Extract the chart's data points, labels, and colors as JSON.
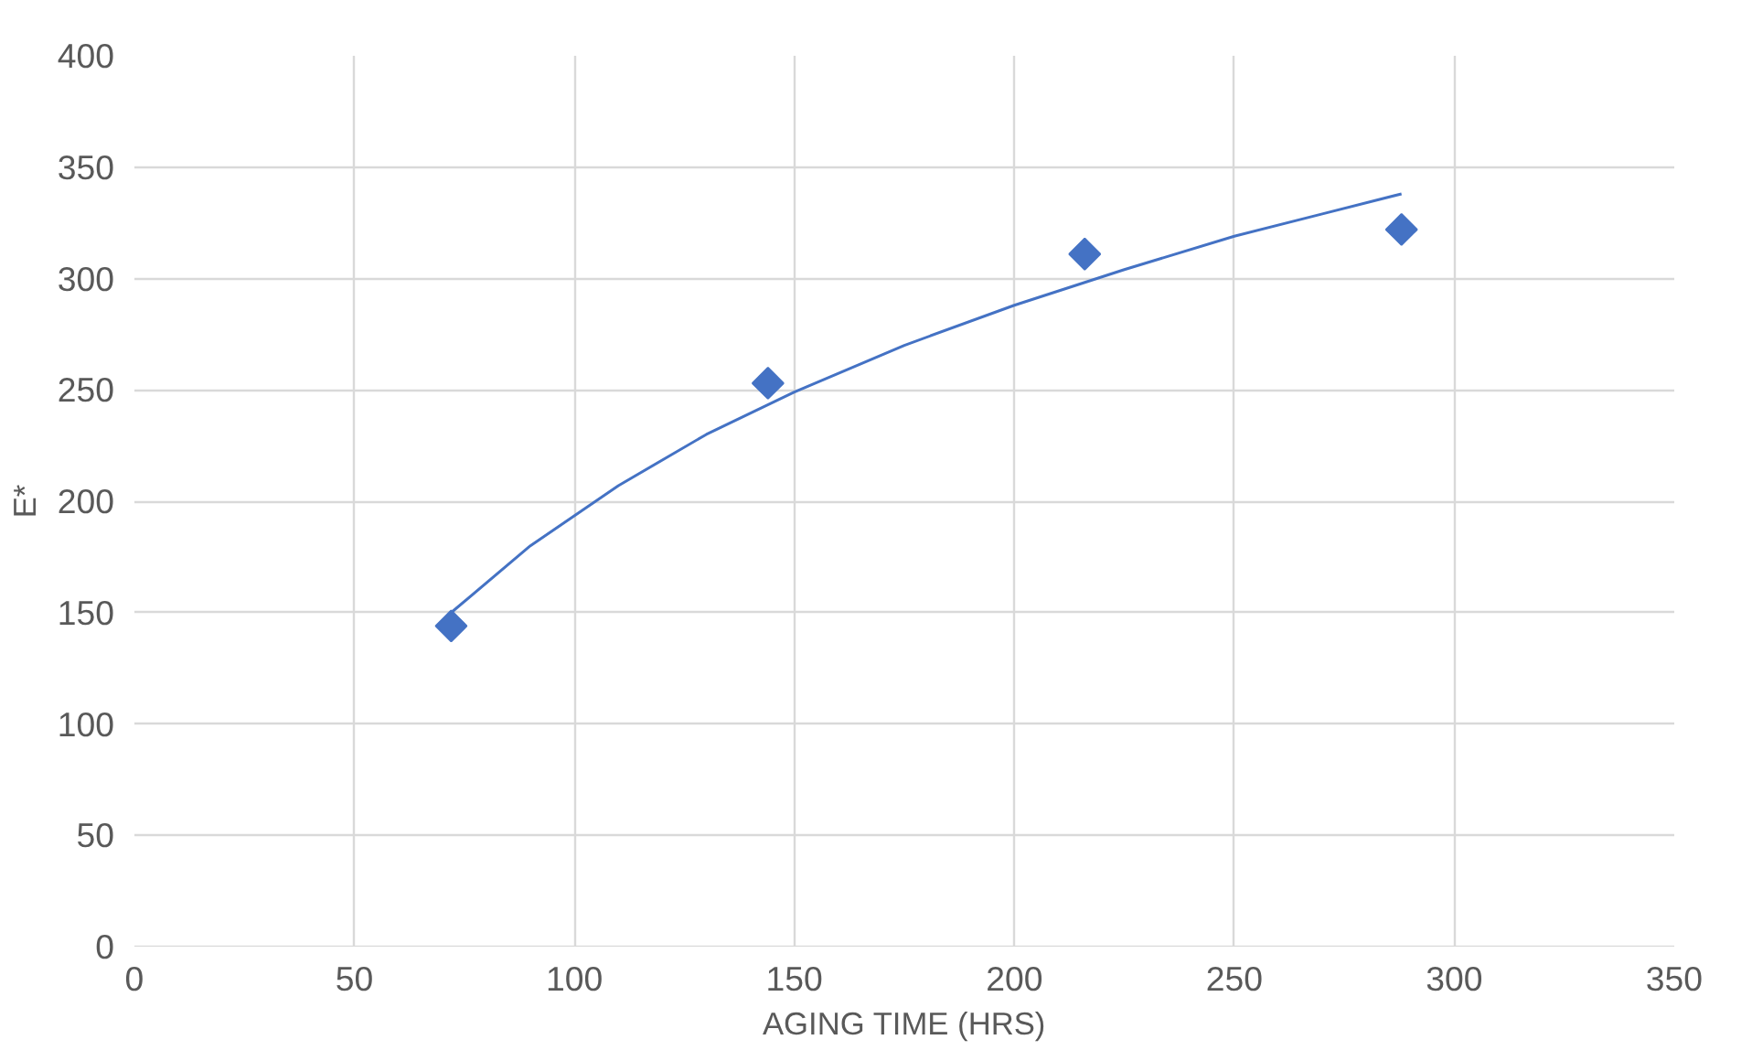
{
  "chart_data": {
    "type": "scatter",
    "xlabel": "AGING TIME (HRS)",
    "ylabel": "E*",
    "series": [
      {
        "color": "#4472c4",
        "marker": "diamond",
        "x": [
          72,
          144,
          216,
          288
        ],
        "values": [
          144,
          253,
          311,
          322
        ]
      },
      {
        "type": "line",
        "color": "#4472c4",
        "marker": "none",
        "x": [
          72,
          90,
          110,
          130,
          150,
          175,
          200,
          225,
          250,
          270,
          288
        ],
        "values": [
          150,
          180,
          207,
          230,
          249,
          270,
          288,
          304,
          319,
          329,
          338
        ]
      }
    ],
    "xlim": [
      0,
      350
    ],
    "xticks": [
      0,
      50,
      100,
      150,
      200,
      250,
      300,
      350
    ],
    "ylim": [
      0,
      400
    ],
    "yticks": [
      0,
      50,
      100,
      150,
      200,
      250,
      300,
      350,
      400
    ],
    "grid": true
  }
}
